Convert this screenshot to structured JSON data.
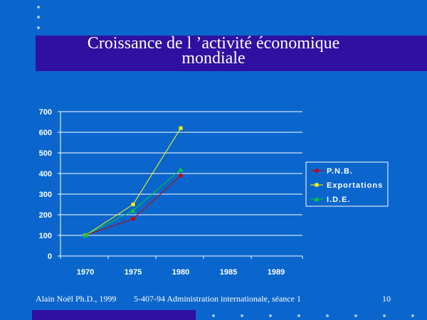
{
  "slide": {
    "title_line1": "Croissance de l ’activité économique",
    "title_line2": "mondiale",
    "footer_author": "Alain Noël Ph.D., 1999",
    "footer_course": "5-407-94 Administration internationale, séance 1",
    "page_number": "10",
    "colors": {
      "background": "#0a66cc",
      "band": "#3010a0"
    }
  },
  "chart_data": {
    "type": "line",
    "title": "",
    "xlabel": "",
    "ylabel": "",
    "categories": [
      "1970",
      "1975",
      "1980",
      "1985",
      "1989"
    ],
    "ylim": [
      0,
      700
    ],
    "yticks": [
      0,
      100,
      200,
      300,
      400,
      500,
      600,
      700
    ],
    "grid": true,
    "legend_position": "right",
    "series": [
      {
        "name": "P.N.B.",
        "color": "#cc0000",
        "marker": "diamond",
        "values": [
          100,
          180,
          390,
          null,
          null
        ]
      },
      {
        "name": "Exportations",
        "color": "#ffff00",
        "marker": "square",
        "values": [
          100,
          250,
          620,
          null,
          null
        ]
      },
      {
        "name": "I.D.E.",
        "color": "#00cc33",
        "marker": "triangle",
        "values": [
          100,
          220,
          420,
          null,
          null
        ]
      }
    ]
  }
}
